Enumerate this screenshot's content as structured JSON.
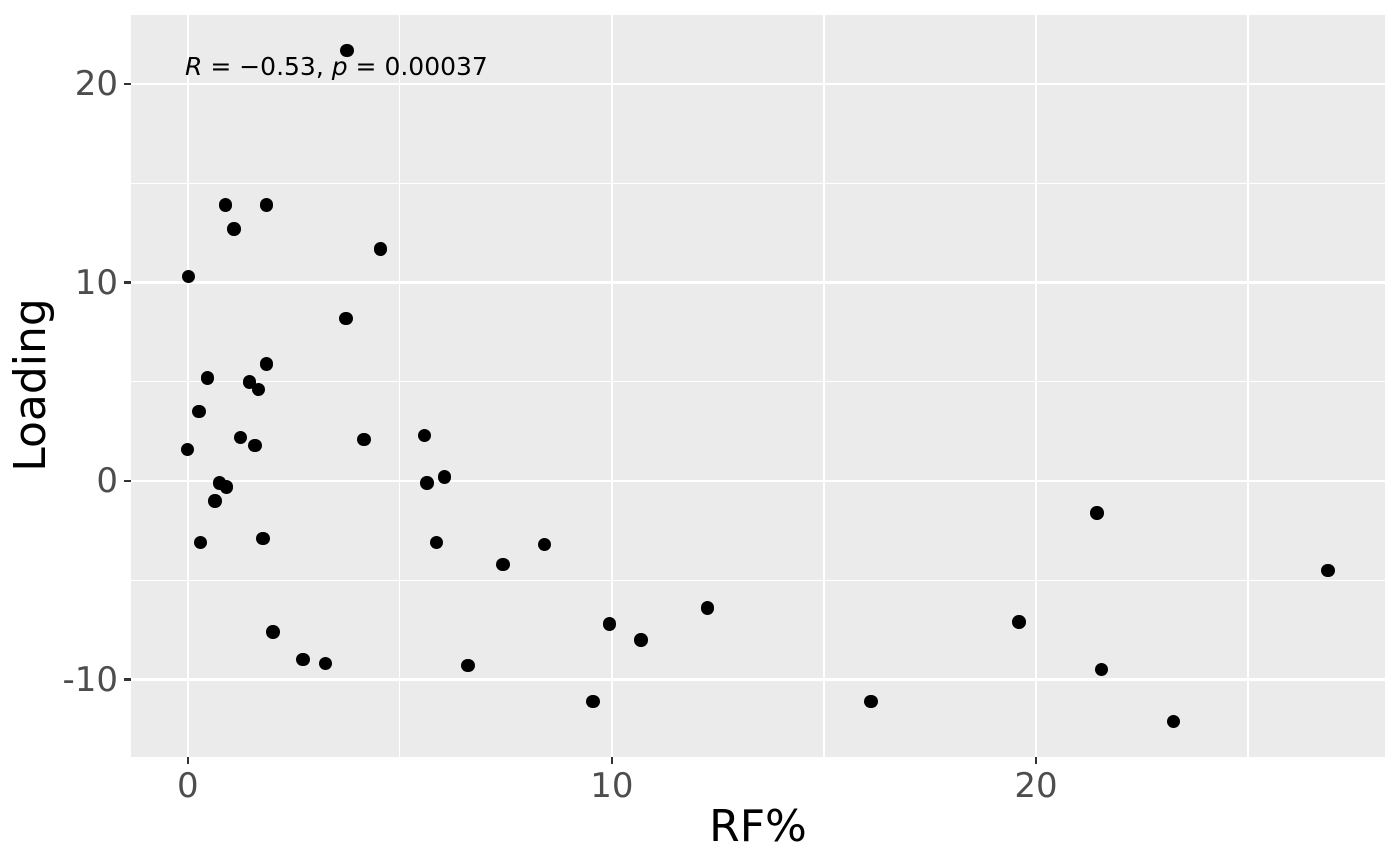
{
  "chart_data": {
    "type": "scatter",
    "title": "",
    "xlabel": "RF%",
    "ylabel": "Loading",
    "annotation": {
      "full_text": "R = −0.53, p = 0.00037",
      "r_var": "R",
      "r_text": " = −0.53, ",
      "p_var": "p",
      "p_text": " = 0.00037"
    },
    "xlim": [
      -1.34,
      28.23
    ],
    "ylim": [
      -13.9,
      23.48
    ],
    "x_major_ticks": [
      0,
      10,
      20
    ],
    "x_tick_labels": [
      "0",
      "10",
      "20"
    ],
    "x_minor_ticks": [
      5,
      15,
      25
    ],
    "y_major_ticks": [
      20,
      10,
      0,
      -10
    ],
    "y_tick_labels": [
      "20",
      "10",
      "0",
      "-10"
    ],
    "y_minor_ticks": [
      15,
      5,
      -5
    ],
    "grid": "on",
    "legend": "none",
    "series_name": "points",
    "points": [
      [
        -0.01,
        1.6
      ],
      [
        0.02,
        10.3
      ],
      [
        0.26,
        3.5
      ],
      [
        0.3,
        -3.1
      ],
      [
        0.46,
        5.2
      ],
      [
        0.64,
        -1.0
      ],
      [
        0.75,
        -0.1
      ],
      [
        0.89,
        13.9
      ],
      [
        0.91,
        -0.3
      ],
      [
        1.09,
        12.7
      ],
      [
        1.24,
        2.2
      ],
      [
        1.45,
        5.0
      ],
      [
        1.58,
        1.8
      ],
      [
        1.66,
        4.6
      ],
      [
        1.77,
        -2.9
      ],
      [
        1.86,
        13.9
      ],
      [
        1.86,
        5.9
      ],
      [
        2.01,
        -7.6
      ],
      [
        2.72,
        -9.0
      ],
      [
        3.25,
        -9.2
      ],
      [
        3.73,
        8.2
      ],
      [
        3.75,
        21.7
      ],
      [
        4.15,
        2.1
      ],
      [
        4.54,
        11.7
      ],
      [
        5.58,
        2.3
      ],
      [
        5.64,
        -0.1
      ],
      [
        5.86,
        -3.1
      ],
      [
        6.05,
        0.2
      ],
      [
        6.61,
        -9.3
      ],
      [
        7.43,
        -4.2
      ],
      [
        8.41,
        -3.2
      ],
      [
        9.55,
        -11.1
      ],
      [
        9.94,
        -7.2
      ],
      [
        10.69,
        -8.0
      ],
      [
        12.26,
        -6.4
      ],
      [
        16.11,
        -11.1
      ],
      [
        19.6,
        -7.1
      ],
      [
        21.44,
        -1.6
      ],
      [
        21.55,
        -9.5
      ],
      [
        23.25,
        -12.1
      ],
      [
        26.89,
        -4.5
      ]
    ],
    "colors": {
      "panel_background": "#EBEBEB",
      "gridline": "#FFFFFF",
      "point": "#000000",
      "tick_label": "#4D4D4D",
      "tick_mark": "#333333",
      "axis_title": "#000000",
      "annotation_text": "#000000",
      "outer_background": "#FFFFFF"
    }
  }
}
